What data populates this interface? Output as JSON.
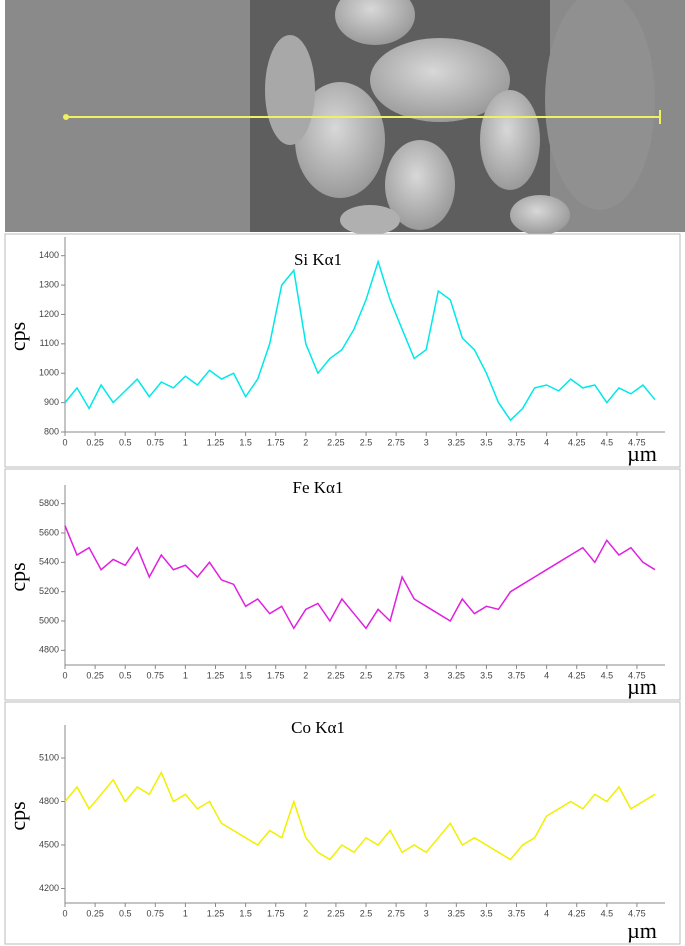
{
  "chart_data": [
    {
      "type": "line",
      "title": "Si Kα1",
      "ylabel": "cps",
      "xlabel": "µm",
      "x": [
        0,
        0.1,
        0.2,
        0.3,
        0.4,
        0.5,
        0.6,
        0.7,
        0.8,
        0.9,
        1,
        1.1,
        1.2,
        1.3,
        1.4,
        1.5,
        1.6,
        1.7,
        1.8,
        1.9,
        2,
        2.1,
        2.2,
        2.3,
        2.4,
        2.5,
        2.6,
        2.7,
        2.8,
        2.9,
        3,
        3.1,
        3.2,
        3.3,
        3.4,
        3.5,
        3.6,
        3.7,
        3.8,
        3.9,
        4,
        4.1,
        4.2,
        4.3,
        4.4,
        4.5,
        4.6,
        4.7,
        4.8,
        4.9
      ],
      "series": [
        {
          "name": "Si Kα1",
          "color": "#00e8e8",
          "values": [
            900,
            950,
            880,
            960,
            900,
            940,
            980,
            920,
            970,
            950,
            990,
            960,
            1010,
            980,
            1000,
            920,
            980,
            1100,
            1300,
            1350,
            1100,
            1000,
            1050,
            1080,
            1150,
            1250,
            1380,
            1250,
            1150,
            1050,
            1080,
            1280,
            1250,
            1120,
            1080,
            1000,
            900,
            840,
            880,
            950,
            960,
            940,
            980,
            950,
            960,
            900,
            950,
            930,
            960,
            910
          ]
        }
      ],
      "xlim": [
        0,
        4.9
      ],
      "ylim": [
        800,
        1450
      ],
      "xticks": [
        0,
        0.25,
        0.5,
        0.75,
        1,
        1.25,
        1.5,
        1.75,
        2,
        2.25,
        2.5,
        2.75,
        3,
        3.25,
        3.5,
        3.75,
        4,
        4.25,
        4.5,
        4.75
      ],
      "yticks": [
        800,
        900,
        1000,
        1100,
        1200,
        1300,
        1400
      ]
    },
    {
      "type": "line",
      "title": "Fe Kα1",
      "ylabel": "cps",
      "xlabel": "µm",
      "x": [
        0,
        0.1,
        0.2,
        0.3,
        0.4,
        0.5,
        0.6,
        0.7,
        0.8,
        0.9,
        1,
        1.1,
        1.2,
        1.3,
        1.4,
        1.5,
        1.6,
        1.7,
        1.8,
        1.9,
        2,
        2.1,
        2.2,
        2.3,
        2.4,
        2.5,
        2.6,
        2.7,
        2.8,
        2.9,
        3,
        3.1,
        3.2,
        3.3,
        3.4,
        3.5,
        3.6,
        3.7,
        3.8,
        3.9,
        4,
        4.1,
        4.2,
        4.3,
        4.4,
        4.5,
        4.6,
        4.7,
        4.8,
        4.9
      ],
      "series": [
        {
          "name": "Fe Kα1",
          "color": "#e020e0",
          "values": [
            5650,
            5450,
            5500,
            5350,
            5420,
            5380,
            5500,
            5300,
            5450,
            5350,
            5380,
            5300,
            5400,
            5280,
            5250,
            5100,
            5150,
            5050,
            5100,
            4950,
            5080,
            5120,
            5000,
            5150,
            5050,
            4950,
            5080,
            5000,
            5300,
            5150,
            5100,
            5050,
            5000,
            5150,
            5050,
            5100,
            5080,
            5200,
            5250,
            5300,
            5350,
            5400,
            5450,
            5500,
            5400,
            5550,
            5450,
            5500,
            5400,
            5350
          ]
        }
      ],
      "xlim": [
        0,
        4.9
      ],
      "ylim": [
        4700,
        5900
      ],
      "xticks": [
        0,
        0.25,
        0.5,
        0.75,
        1,
        1.25,
        1.5,
        1.75,
        2,
        2.25,
        2.5,
        2.75,
        3,
        3.25,
        3.5,
        3.75,
        4,
        4.25,
        4.5,
        4.75
      ],
      "yticks": [
        4800,
        5000,
        5200,
        5400,
        5600,
        5800
      ]
    },
    {
      "type": "line",
      "title": "Co Kα1",
      "ylabel": "cps",
      "xlabel": "µm",
      "x": [
        0,
        0.1,
        0.2,
        0.3,
        0.4,
        0.5,
        0.6,
        0.7,
        0.8,
        0.9,
        1,
        1.1,
        1.2,
        1.3,
        1.4,
        1.5,
        1.6,
        1.7,
        1.8,
        1.9,
        2,
        2.1,
        2.2,
        2.3,
        2.4,
        2.5,
        2.6,
        2.7,
        2.8,
        2.9,
        3,
        3.1,
        3.2,
        3.3,
        3.4,
        3.5,
        3.6,
        3.7,
        3.8,
        3.9,
        4,
        4.1,
        4.2,
        4.3,
        4.4,
        4.5,
        4.6,
        4.7,
        4.8,
        4.9
      ],
      "series": [
        {
          "name": "Co Kα1",
          "color": "#f0f000",
          "values": [
            4800,
            4900,
            4750,
            4850,
            4950,
            4800,
            4900,
            4850,
            5000,
            4800,
            4850,
            4750,
            4800,
            4650,
            4600,
            4550,
            4500,
            4600,
            4550,
            4800,
            4550,
            4450,
            4400,
            4500,
            4450,
            4550,
            4500,
            4600,
            4450,
            4500,
            4450,
            4550,
            4650,
            4500,
            4550,
            4500,
            4450,
            4400,
            4500,
            4550,
            4700,
            4750,
            4800,
            4750,
            4850,
            4800,
            4900,
            4750,
            4800,
            4850
          ]
        }
      ],
      "xlim": [
        0,
        4.9
      ],
      "ylim": [
        4100,
        5300
      ],
      "xticks": [
        0,
        0.25,
        0.5,
        0.75,
        1,
        1.25,
        1.5,
        1.75,
        2,
        2.25,
        2.5,
        2.75,
        3,
        3.25,
        3.5,
        3.75,
        4,
        4.25,
        4.5,
        4.75
      ],
      "yticks": [
        4200,
        4500,
        4800,
        5100
      ]
    }
  ]
}
